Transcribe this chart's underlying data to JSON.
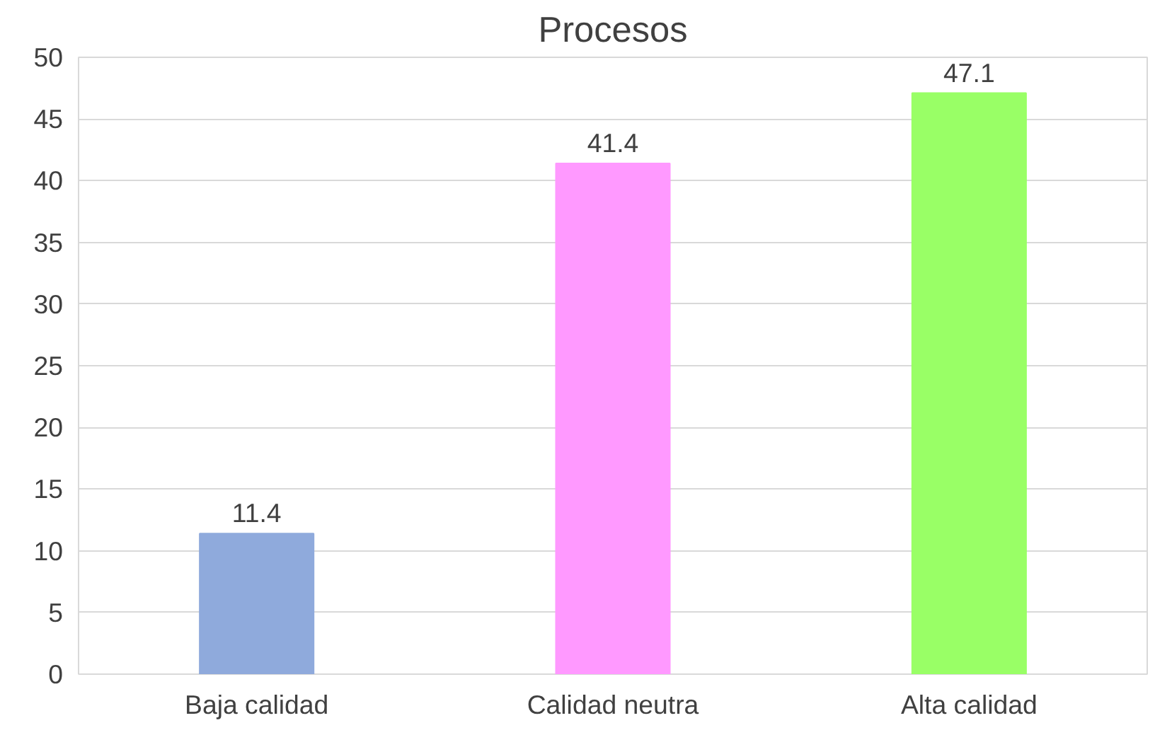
{
  "chart_data": {
    "type": "bar",
    "title": "Procesos",
    "categories": [
      "Baja calidad",
      "Calidad neutra",
      "Alta calidad"
    ],
    "values": [
      11.4,
      41.4,
      47.1
    ],
    "colors": [
      "#8faadc",
      "#ff99ff",
      "#99ff66"
    ],
    "ylim": [
      0,
      50
    ],
    "yticks": [
      0,
      5,
      10,
      15,
      20,
      25,
      30,
      35,
      40,
      45,
      50
    ],
    "grid": "y",
    "data_labels": true
  }
}
